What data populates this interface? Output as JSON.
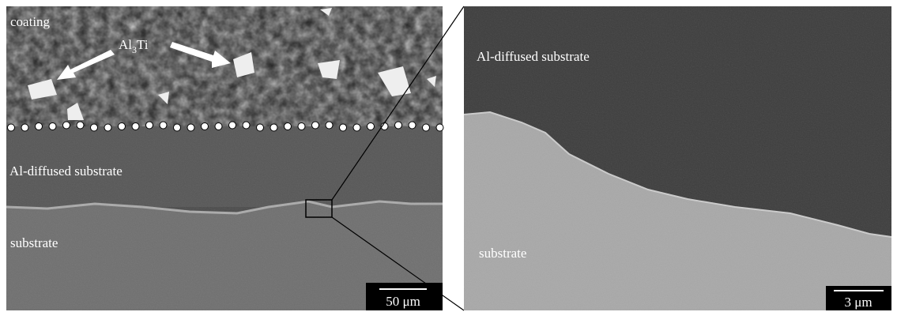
{
  "left_panel": {
    "labels": {
      "coating": "coating",
      "phase": {
        "base": "Al",
        "subscript": "3",
        "rest": "Ti"
      },
      "diffused": "Al-diffused substrate",
      "substrate": "substrate"
    },
    "scale_bar": "50 μm"
  },
  "right_panel": {
    "labels": {
      "diffused": "Al-diffused substrate",
      "substrate": "substrate"
    },
    "scale_bar": "3 μm"
  }
}
